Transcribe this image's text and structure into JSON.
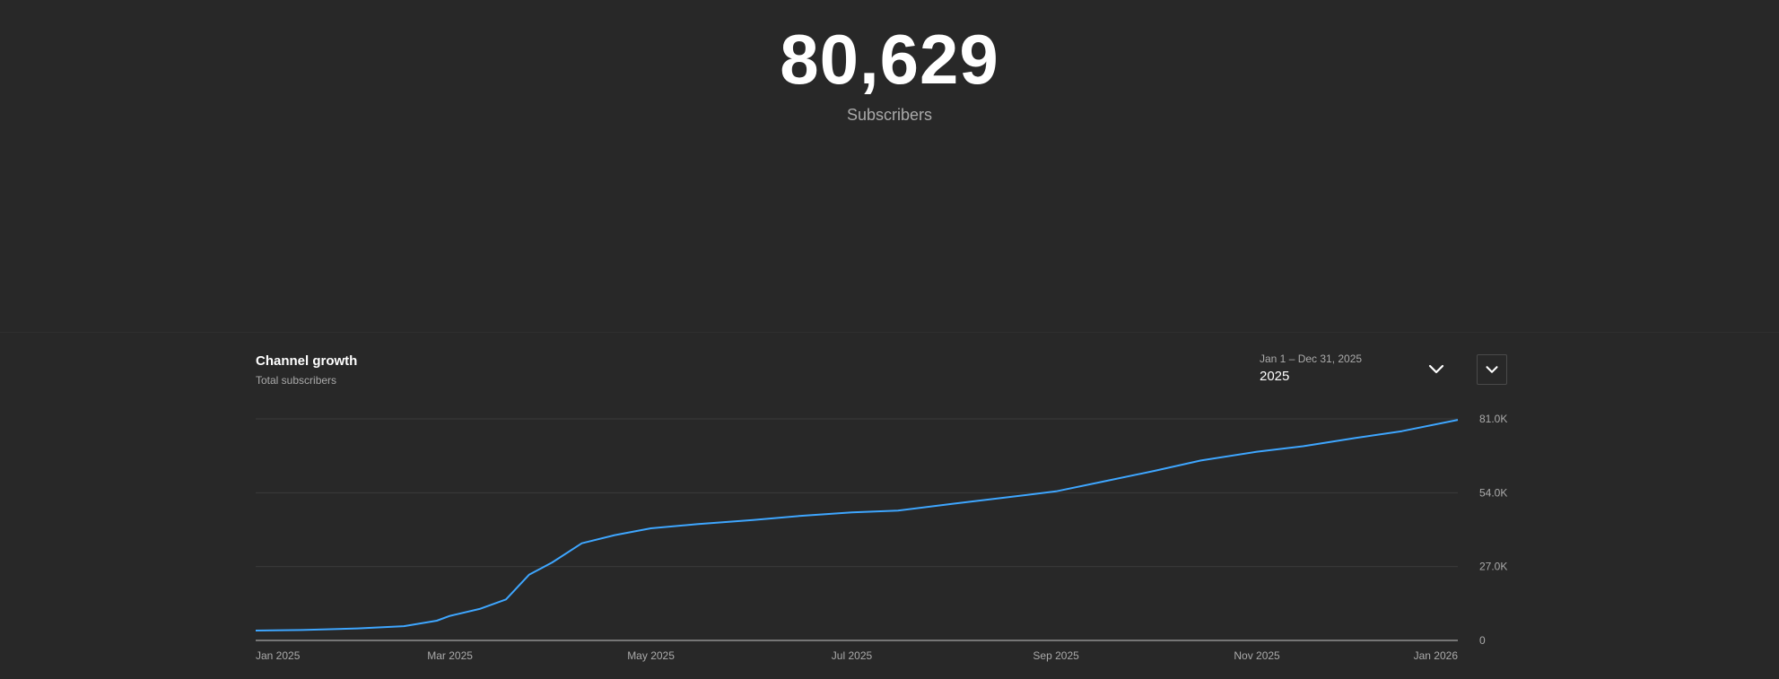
{
  "hero": {
    "count": "80,629",
    "label": "Subscribers"
  },
  "panel": {
    "title": "Channel growth",
    "subtitle": "Total subscribers",
    "range_dates": "Jan 1 – Dec 31, 2025",
    "range_label": "2025",
    "range_chevron_icon": "chevron-down-icon",
    "menu_icon": "chevron-down-icon"
  },
  "colors": {
    "background": "#282828",
    "line": "#3ea6ff",
    "grid": "#3a3a3a",
    "axis": "#909090",
    "muted_text": "#aaaaaa"
  },
  "chart_data": {
    "type": "line",
    "title": "",
    "xlabel": "",
    "ylabel": "",
    "x_ticks": [
      "Jan 2025",
      "Mar 2025",
      "May 2025",
      "Jul 2025",
      "Sep 2025",
      "Nov 2025",
      "Jan 2026"
    ],
    "y_ticks": [
      "0",
      "27.0K",
      "54.0K",
      "81.0K"
    ],
    "ylim": [
      0,
      81000
    ],
    "xlim": [
      "2025-01-01",
      "2026-01-01"
    ],
    "grid": true,
    "series": [
      {
        "name": "",
        "x": [
          "2025-01-01",
          "2025-01-15",
          "2025-02-01",
          "2025-02-15",
          "2025-02-25",
          "2025-03-01",
          "2025-03-10",
          "2025-03-18",
          "2025-03-25",
          "2025-04-01",
          "2025-04-10",
          "2025-04-20",
          "2025-05-01",
          "2025-05-15",
          "2025-06-01",
          "2025-06-15",
          "2025-07-01",
          "2025-07-15",
          "2025-08-01",
          "2025-08-15",
          "2025-09-01",
          "2025-09-15",
          "2025-10-01",
          "2025-10-15",
          "2025-11-01",
          "2025-11-15",
          "2025-12-01",
          "2025-12-15",
          "2026-01-01"
        ],
        "y": [
          3600,
          3800,
          4400,
          5200,
          7200,
          9000,
          11500,
          15000,
          24000,
          28500,
          35500,
          38500,
          41000,
          42500,
          44000,
          45500,
          46800,
          47500,
          50000,
          52000,
          54500,
          58000,
          62000,
          65800,
          69000,
          71000,
          74000,
          76500,
          80629
        ]
      }
    ]
  }
}
